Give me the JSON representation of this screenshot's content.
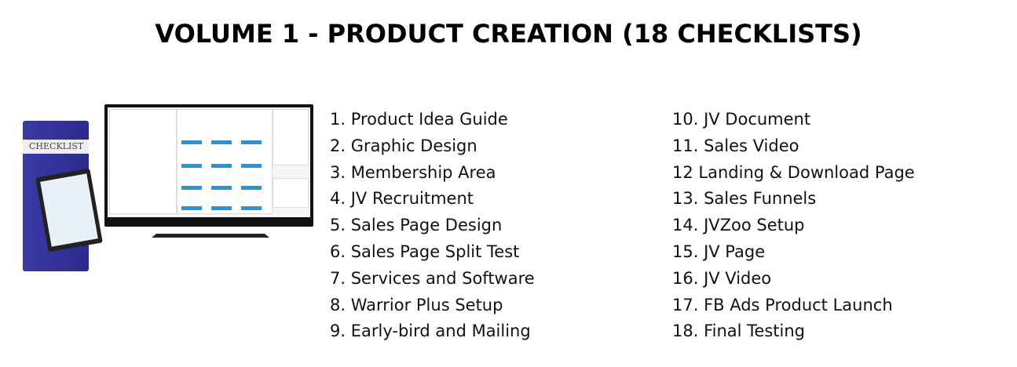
{
  "title": "VOLUME 1 - PRODUCT CREATION (18 CHECKLISTS)",
  "product_image": {
    "logo_text": "CHECKLIST",
    "accent": "#2b2b8c",
    "tile_color": "#2196d8"
  },
  "checklists_col1": [
    "1. Product Idea Guide",
    "2. Graphic Design",
    "3. Membership Area",
    "4. JV Recruitment",
    "5. Sales Page Design",
    "6. Sales Page Split Test",
    "7. Services and Software",
    "8. Warrior Plus Setup",
    "9. Early-bird and Mailing"
  ],
  "checklists_col2": [
    "10. JV Document",
    "11. Sales Video",
    "12 Landing & Download Page",
    "13. Sales Funnels",
    "14. JVZoo Setup",
    "15. JV Page",
    "16. JV Video",
    "17. FB Ads Product Launch",
    "18. Final Testing"
  ]
}
